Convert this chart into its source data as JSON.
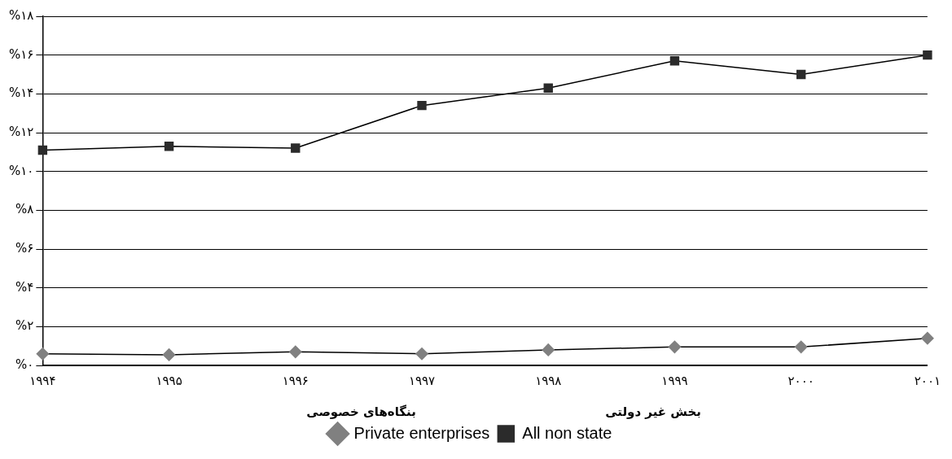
{
  "chart_data": {
    "type": "line",
    "categories": [
      "۱۹۹۴",
      "۱۹۹۵",
      "۱۹۹۶",
      "۱۹۹۷",
      "۱۹۹۸",
      "۱۹۹۹",
      "۲۰۰۰",
      "۲۰۰۱"
    ],
    "series": [
      {
        "name": "Private enterprises",
        "color": "#808080",
        "marker": "diamond",
        "values": [
          0.6,
          0.55,
          0.7,
          0.6,
          0.8,
          0.95,
          0.95,
          1.4
        ]
      },
      {
        "name": "All non state",
        "color": "#2b2b2b",
        "marker": "square",
        "values": [
          11.1,
          11.3,
          11.2,
          13.4,
          14.3,
          15.7,
          15.0,
          16.0
        ]
      }
    ],
    "ylim": [
      0,
      18
    ],
    "yticks": [
      {
        "value": 0,
        "label": "%۰"
      },
      {
        "value": 2,
        "label": "%۲"
      },
      {
        "value": 4,
        "label": "%۴"
      },
      {
        "value": 6,
        "label": "%۶"
      },
      {
        "value": 8,
        "label": "%۸"
      },
      {
        "value": 10,
        "label": "%۱۰"
      },
      {
        "value": 12,
        "label": "%۱۲"
      },
      {
        "value": 14,
        "label": "%۱۴"
      },
      {
        "value": 16,
        "label": "%۱۶"
      },
      {
        "value": 18,
        "label": "%۱۸"
      }
    ],
    "grid": "y",
    "legend": "bottom",
    "annotations": [
      "بنگاه‌های خصوصی",
      "بخش غیر دولتی"
    ]
  }
}
